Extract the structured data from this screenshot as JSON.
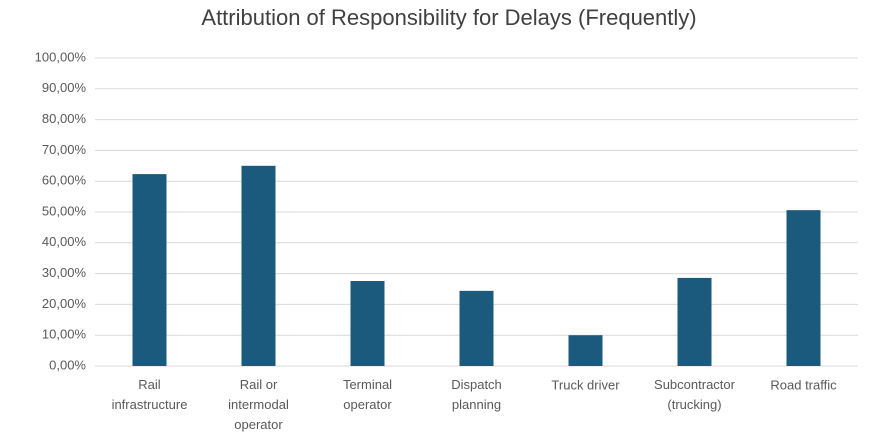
{
  "chart_data": {
    "type": "bar",
    "title": "Attribution of Responsibility for Delays (Frequently)",
    "categories": [
      "Rail\ninfrastructure",
      "Rail or\nintermodal\noperator",
      "Terminal\noperator",
      "Dispatch\nplanning",
      "Truck driver",
      "Subcontractor\n(trucking)",
      "Road traffic"
    ],
    "values": [
      62.3,
      65,
      27.6,
      24.4,
      10,
      28.6,
      50.6
    ],
    "color": "#1b5a7d",
    "ylim": [
      0,
      100
    ],
    "yticks": [
      {
        "value": 0,
        "label": "0,00%"
      },
      {
        "value": 10,
        "label": "10,00%"
      },
      {
        "value": 20,
        "label": "20,00%"
      },
      {
        "value": 30,
        "label": "30,00%"
      },
      {
        "value": 40,
        "label": "40,00%"
      },
      {
        "value": 50,
        "label": "50,00%"
      },
      {
        "value": 60,
        "label": "60,00%"
      },
      {
        "value": 70,
        "label": "70,00%"
      },
      {
        "value": 80,
        "label": "80,00%"
      },
      {
        "value": 90,
        "label": "90,00%"
      },
      {
        "value": 100,
        "label": "100,00%"
      }
    ],
    "grid": true
  }
}
